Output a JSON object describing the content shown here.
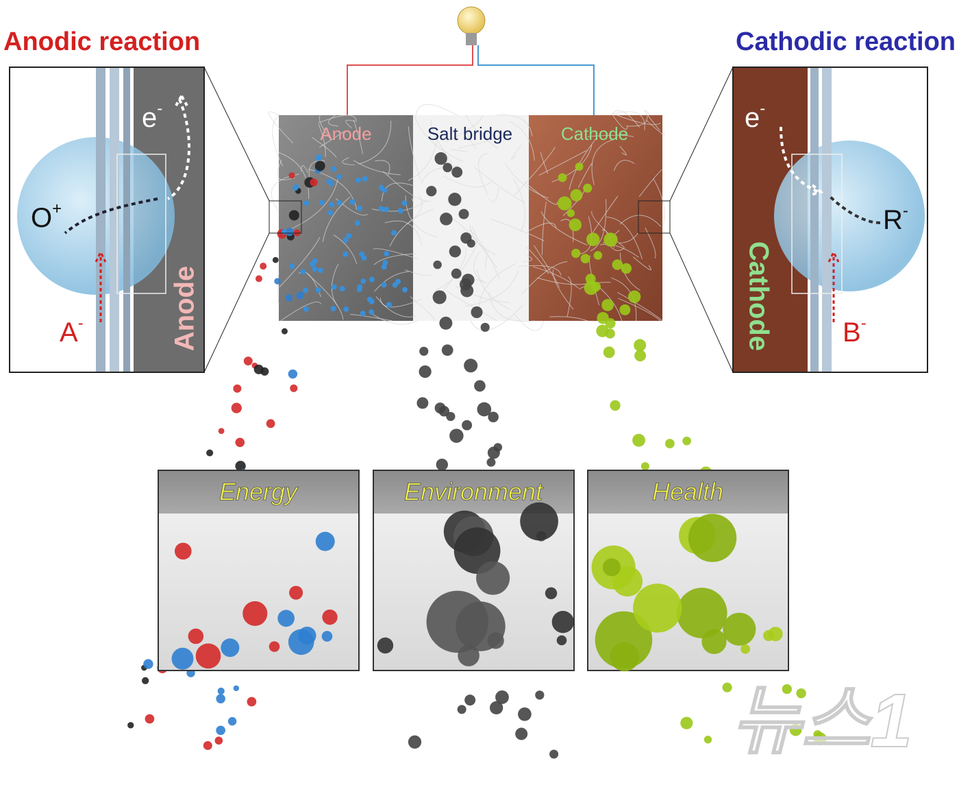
{
  "header": {
    "left_title": "Anodic reaction",
    "right_title": "Cathodic reaction"
  },
  "cell": {
    "anode": "Anode",
    "salt_bridge": "Salt bridge",
    "cathode": "Cathode"
  },
  "left_zoom": {
    "electron": {
      "symbol": "e",
      "charge": "-"
    },
    "oxidized": {
      "symbol": "O",
      "charge": "+"
    },
    "reactant": {
      "symbol": "A",
      "charge": "-"
    },
    "electrode": "Anode"
  },
  "right_zoom": {
    "electron": {
      "symbol": "e",
      "charge": "-"
    },
    "reduced": {
      "symbol": "R",
      "charge": "-"
    },
    "reactant": {
      "symbol": "B",
      "charge": "-"
    },
    "electrode": "Cathode"
  },
  "applications": [
    "Energy",
    "Environment",
    "Health"
  ],
  "watermark": "뉴스1"
}
